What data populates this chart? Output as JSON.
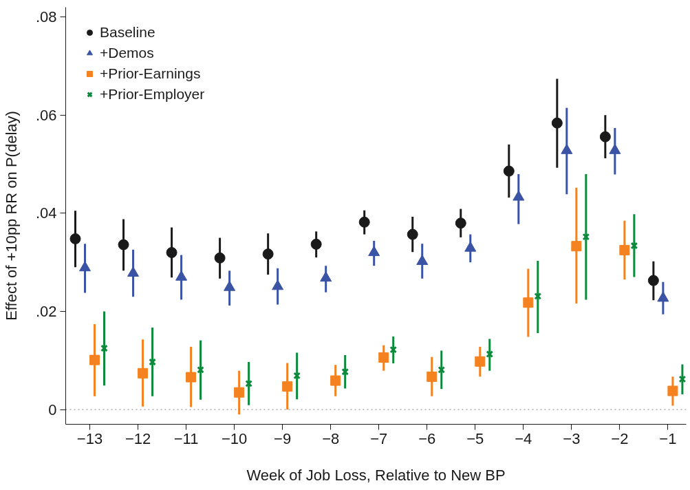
{
  "chart_data": {
    "type": "scatter",
    "xlabel": "Week of Job Loss, Relative to New BP",
    "ylabel": "Effect of +10pp RR on P(delay)",
    "xlim": [
      -13.5,
      -0.62
    ],
    "ylim": [
      -0.003,
      0.082
    ],
    "xticks": [
      -13,
      -12,
      -11,
      -10,
      -9,
      -8,
      -7,
      -6,
      -5,
      -4,
      -3,
      -2,
      -1
    ],
    "yticks": [
      {
        "value": 0,
        "label": "0"
      },
      {
        "value": 0.02,
        "label": ".02"
      },
      {
        "value": 0.04,
        "label": ".04"
      },
      {
        "value": 0.06,
        "label": ".06"
      },
      {
        "value": 0.08,
        "label": ".08"
      }
    ],
    "grid": false,
    "legend": "top left",
    "ref_lines": [
      {
        "axis": "y",
        "value": 0,
        "color": "#808080",
        "line_style": "dotted"
      }
    ],
    "series": [
      {
        "name": "Baseline",
        "color": "#1a1a1a",
        "marker": "circle",
        "x": [
          -13.3,
          -12.3,
          -11.3,
          -10.3,
          -9.3,
          -8.3,
          -7.3,
          -6.3,
          -5.3,
          -4.3,
          -3.3,
          -2.3,
          -1.3
        ],
        "values": [
          0.0348,
          0.0336,
          0.032,
          0.0309,
          0.0317,
          0.0337,
          0.0382,
          0.0357,
          0.038,
          0.0486,
          0.0584,
          0.0556,
          0.0263
        ],
        "errors": [
          [
            0.029,
            0.0405
          ],
          [
            0.0283,
            0.0388
          ],
          [
            0.0269,
            0.0371
          ],
          [
            0.0267,
            0.035
          ],
          [
            0.0275,
            0.0359
          ],
          [
            0.031,
            0.0363
          ],
          [
            0.0357,
            0.0406
          ],
          [
            0.0321,
            0.0393
          ],
          [
            0.0351,
            0.0409
          ],
          [
            0.0432,
            0.054
          ],
          [
            0.0493,
            0.0674
          ],
          [
            0.0512,
            0.06
          ],
          [
            0.0223,
            0.0302
          ]
        ]
      },
      {
        "name": "+Demos",
        "color": "#3a53a4",
        "marker": "triangle",
        "x": [
          -13.1,
          -12.1,
          -11.1,
          -10.1,
          -9.1,
          -8.1,
          -7.1,
          -6.1,
          -5.1,
          -4.1,
          -3.1,
          -2.1,
          -1.1
        ],
        "values": [
          0.0289,
          0.0278,
          0.027,
          0.0249,
          0.0251,
          0.0268,
          0.032,
          0.0302,
          0.0329,
          0.0433,
          0.0528,
          0.0528,
          0.0227
        ],
        "errors": [
          [
            0.0238,
            0.0338
          ],
          [
            0.023,
            0.0326
          ],
          [
            0.0224,
            0.0315
          ],
          [
            0.0212,
            0.0283
          ],
          [
            0.0214,
            0.0288
          ],
          [
            0.0239,
            0.0293
          ],
          [
            0.0293,
            0.0344
          ],
          [
            0.0267,
            0.0338
          ],
          [
            0.03,
            0.0357
          ],
          [
            0.0378,
            0.048
          ],
          [
            0.0439,
            0.0615
          ],
          [
            0.0479,
            0.0574
          ],
          [
            0.0194,
            0.026
          ]
        ]
      },
      {
        "name": "+Prior-Earnings",
        "color": "#f58220",
        "marker": "square",
        "x": [
          -12.9,
          -11.9,
          -10.9,
          -9.9,
          -8.9,
          -7.9,
          -6.9,
          -5.9,
          -4.9,
          -3.9,
          -2.9,
          -1.9,
          -0.9
        ],
        "values": [
          0.0101,
          0.0074,
          0.0066,
          0.0035,
          0.0047,
          0.0059,
          0.0106,
          0.0067,
          0.0098,
          0.0218,
          0.0333,
          0.0325,
          0.0038
        ],
        "errors": [
          [
            0.0027,
            0.0174
          ],
          [
            0.0006,
            0.0143
          ],
          [
            0.0005,
            0.0128
          ],
          [
            -0.001,
            0.0079
          ],
          [
            0.0,
            0.0095
          ],
          [
            0.0027,
            0.0091
          ],
          [
            0.0079,
            0.0131
          ],
          [
            0.0027,
            0.0107
          ],
          [
            0.0067,
            0.0128
          ],
          [
            0.0148,
            0.0287
          ],
          [
            0.0216,
            0.0452
          ],
          [
            0.0265,
            0.0385
          ],
          [
            0.0008,
            0.0067
          ]
        ]
      },
      {
        "name": "+Prior-Employer",
        "color": "#0b8a3c",
        "marker": "cross",
        "x": [
          -12.7,
          -11.7,
          -10.7,
          -9.7,
          -8.7,
          -7.7,
          -6.7,
          -5.7,
          -4.7,
          -3.7,
          -2.7,
          -1.7,
          -0.7
        ],
        "values": [
          0.0125,
          0.0097,
          0.0081,
          0.0053,
          0.0069,
          0.0077,
          0.0122,
          0.0081,
          0.0113,
          0.0231,
          0.0352,
          0.0334,
          0.0062
        ],
        "errors": [
          [
            0.0049,
            0.02
          ],
          [
            0.0027,
            0.0167
          ],
          [
            0.002,
            0.0141
          ],
          [
            0.0009,
            0.0097
          ],
          [
            0.0021,
            0.0116
          ],
          [
            0.0043,
            0.0111
          ],
          [
            0.0094,
            0.0149
          ],
          [
            0.0042,
            0.012
          ],
          [
            0.0079,
            0.0144
          ],
          [
            0.0156,
            0.0303
          ],
          [
            0.0224,
            0.048
          ],
          [
            0.027,
            0.0398
          ],
          [
            0.0031,
            0.0092
          ]
        ]
      }
    ]
  }
}
